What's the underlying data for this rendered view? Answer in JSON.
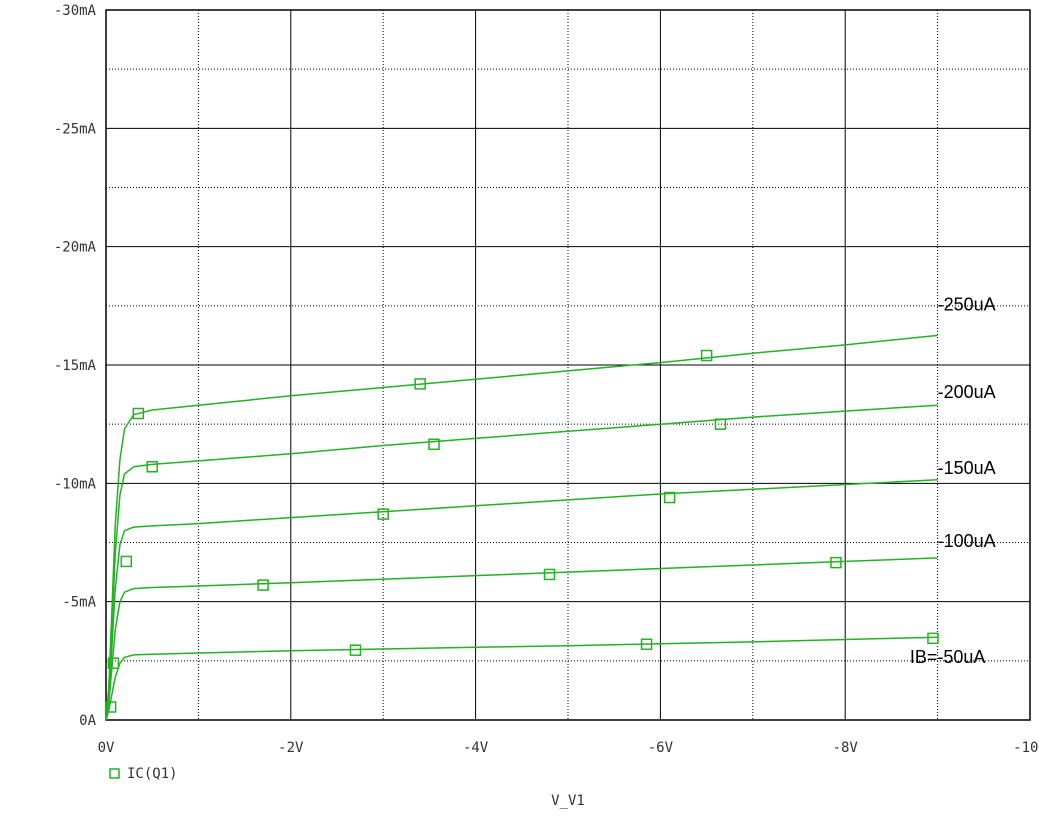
{
  "chart_data": {
    "type": "line",
    "xlabel": "V_V1",
    "ylabel": "",
    "xlim": [
      0,
      -10
    ],
    "ylim": [
      0,
      -30
    ],
    "x_ticks": [
      0,
      -2,
      -4,
      -6,
      -8,
      -10
    ],
    "x_tick_labels": [
      "0V",
      "-2V",
      "-4V",
      "-6V",
      "-8V",
      "-10V"
    ],
    "y_ticks": [
      0,
      -5,
      -10,
      -15,
      -20,
      -25,
      -30
    ],
    "y_tick_labels": [
      "0A",
      "-5mA",
      "-10mA",
      "-15mA",
      "-20mA",
      "-25mA",
      "-30mA"
    ],
    "grid": true,
    "legend": {
      "position": "bottom-left",
      "entries": [
        "IC(Q1)"
      ]
    },
    "trace_color": "#22b222",
    "series": [
      {
        "label": "IB=-50uA",
        "x": [
          0,
          -0.03,
          -0.06,
          -0.1,
          -0.15,
          -0.2,
          -0.3,
          -0.5,
          -1,
          -2,
          -3,
          -4,
          -5,
          -6,
          -7,
          -8,
          -9
        ],
        "y": [
          0,
          -0.4,
          -1.0,
          -1.8,
          -2.4,
          -2.65,
          -2.75,
          -2.78,
          -2.83,
          -2.93,
          -3.0,
          -3.07,
          -3.14,
          -3.22,
          -3.3,
          -3.4,
          -3.5
        ],
        "markers_x": [
          0.05,
          2.7,
          5.85,
          8.95
        ],
        "markers_y": [
          0.55,
          2.95,
          3.2,
          3.45
        ]
      },
      {
        "label": "-100uA",
        "x": [
          0,
          -0.03,
          -0.06,
          -0.1,
          -0.15,
          -0.2,
          -0.3,
          -0.5,
          -1,
          -2,
          -3,
          -4,
          -5,
          -6,
          -7,
          -8,
          -9
        ],
        "y": [
          0,
          -0.7,
          -2.0,
          -3.8,
          -5.0,
          -5.4,
          -5.55,
          -5.6,
          -5.66,
          -5.8,
          -5.95,
          -6.1,
          -6.25,
          -6.4,
          -6.55,
          -6.7,
          -6.85
        ],
        "markers_x": [
          0.22,
          1.7,
          4.8,
          7.9
        ],
        "markers_y": [
          6.7,
          5.7,
          6.15,
          6.65
        ]
      },
      {
        "label": "-150uA",
        "x": [
          0,
          -0.03,
          -0.06,
          -0.1,
          -0.15,
          -0.2,
          -0.3,
          -0.5,
          -1,
          -2,
          -3,
          -4,
          -5,
          -6,
          -7,
          -8,
          -9
        ],
        "y": [
          0,
          -1.0,
          -2.8,
          -5.5,
          -7.4,
          -8.0,
          -8.15,
          -8.2,
          -8.3,
          -8.55,
          -8.8,
          -9.05,
          -9.3,
          -9.55,
          -9.75,
          -9.95,
          -10.15
        ],
        "markers_x": [
          0.08,
          3.0,
          6.1
        ],
        "markers_y": [
          2.4,
          8.7,
          9.4
        ]
      },
      {
        "label": "-200uA",
        "x": [
          0,
          -0.03,
          -0.06,
          -0.1,
          -0.15,
          -0.2,
          -0.3,
          -0.5,
          -1,
          -2,
          -3,
          -4,
          -5,
          -6,
          -7,
          -8,
          -9
        ],
        "y": [
          0,
          -1.2,
          -3.5,
          -7.0,
          -9.5,
          -10.4,
          -10.7,
          -10.8,
          -10.95,
          -11.25,
          -11.6,
          -11.9,
          -12.2,
          -12.5,
          -12.8,
          -13.05,
          -13.3
        ],
        "markers_x": [
          0.5,
          3.55,
          6.65
        ],
        "markers_y": [
          10.7,
          11.65,
          12.5
        ]
      },
      {
        "label": "-250uA",
        "x": [
          0,
          -0.03,
          -0.06,
          -0.1,
          -0.15,
          -0.2,
          -0.3,
          -0.4,
          -0.5,
          -1,
          -2,
          -3,
          -4,
          -5,
          -6,
          -7,
          -8,
          -9
        ],
        "y": [
          0,
          -1.4,
          -4.2,
          -8.2,
          -11.0,
          -12.3,
          -12.9,
          -13.0,
          -13.1,
          -13.3,
          -13.7,
          -14.05,
          -14.4,
          -14.75,
          -15.1,
          -15.5,
          -15.85,
          -16.25
        ],
        "markers_x": [
          0.35,
          3.4,
          6.5
        ],
        "markers_y": [
          12.95,
          14.2,
          15.4
        ]
      }
    ],
    "curve_labels": [
      {
        "text": "-250uA",
        "x": -9.0,
        "y": -17.3
      },
      {
        "text": "-200uA",
        "x": -9.0,
        "y": -13.6
      },
      {
        "text": "-150uA",
        "x": -9.0,
        "y": -10.4
      },
      {
        "text": "-100uA",
        "x": -9.0,
        "y": -7.3
      },
      {
        "text": "IB=-50uA",
        "x": -8.7,
        "y": -2.4
      }
    ]
  }
}
